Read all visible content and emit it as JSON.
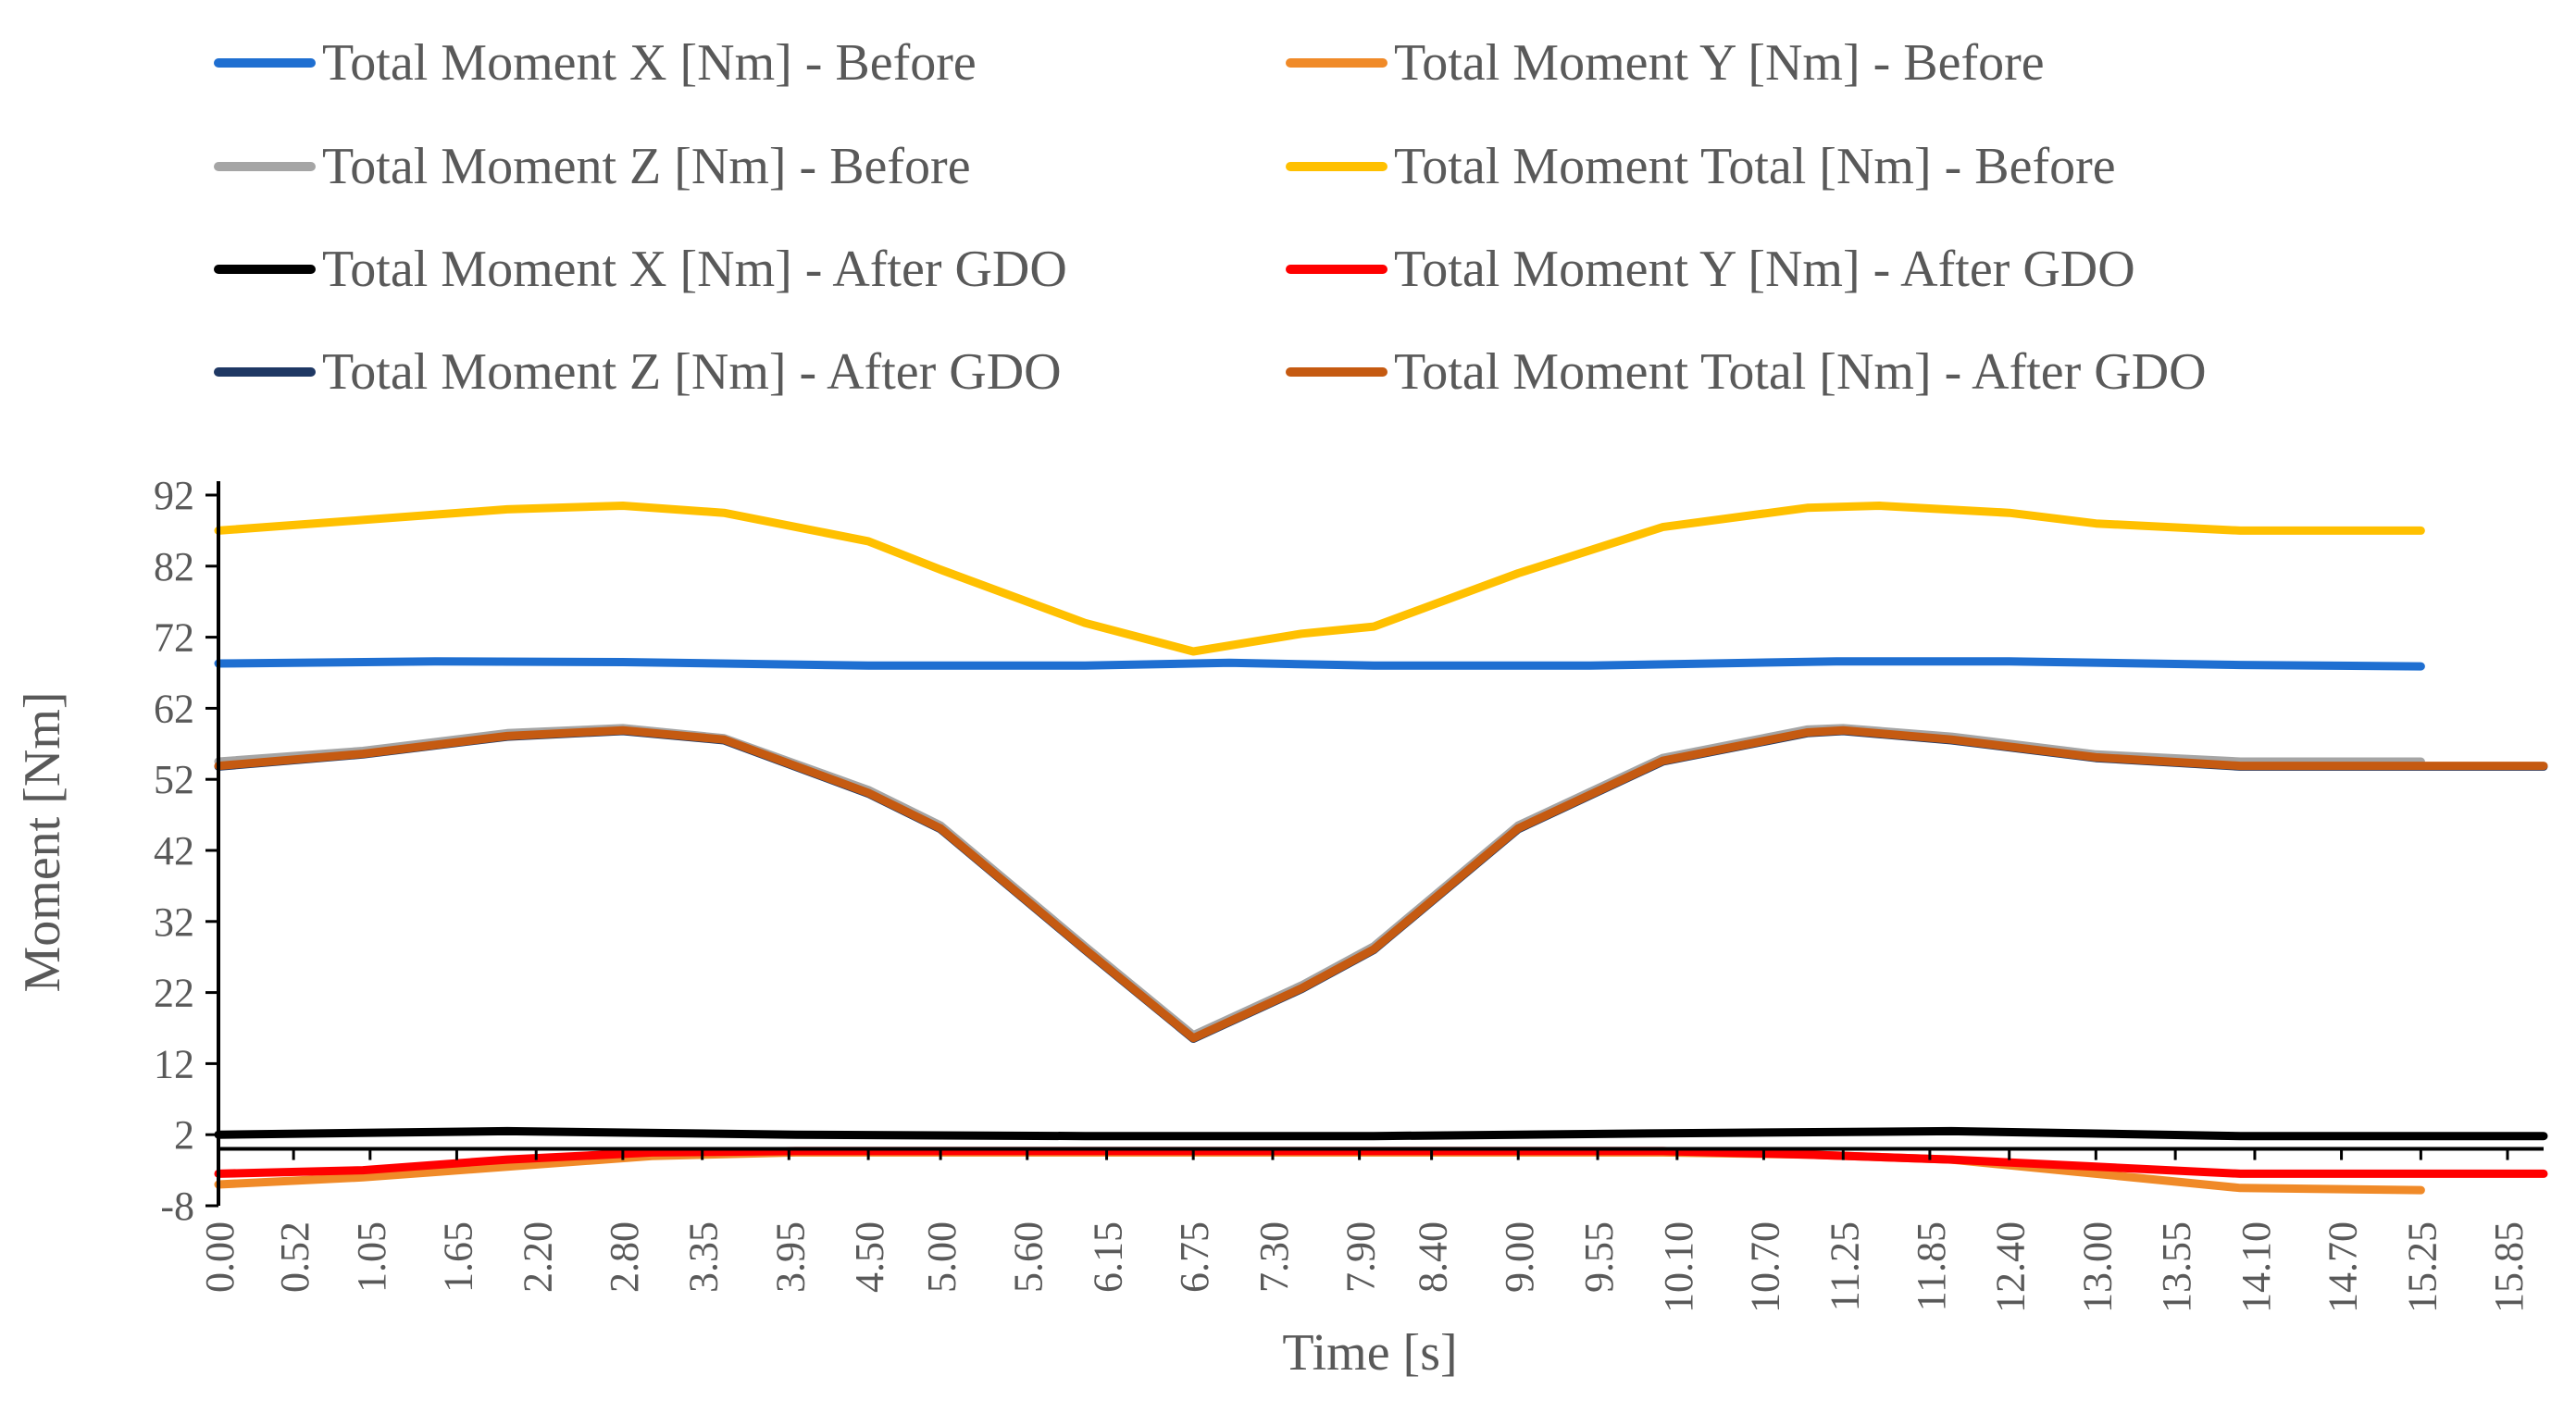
{
  "chart_data": {
    "type": "line",
    "xlabel": "Time [s]",
    "ylabel": "Moment [Nm]",
    "ylim": [
      -8,
      92
    ],
    "yticks": [
      92,
      82,
      72,
      62,
      52,
      42,
      32,
      22,
      12,
      2,
      -8
    ],
    "xlim": [
      0,
      16.1
    ],
    "xticks": [
      "0.00",
      "0.52",
      "1.05",
      "1.65",
      "2.20",
      "2.80",
      "3.35",
      "3.95",
      "4.50",
      "5.00",
      "5.60",
      "6.15",
      "6.75",
      "7.30",
      "7.90",
      "8.40",
      "9.00",
      "9.55",
      "10.10",
      "10.70",
      "11.25",
      "11.85",
      "12.40",
      "13.00",
      "13.55",
      "14.10",
      "14.70",
      "15.25",
      "15.85"
    ],
    "grid": false,
    "legend_position": "top",
    "series": [
      {
        "name": "Total Moment X [Nm] - Before",
        "color": "#1f6fd1",
        "x": [
          0,
          1.5,
          2.8,
          4.5,
          6.0,
          7.0,
          8.0,
          9.5,
          11.2,
          12.4,
          14.0,
          15.25
        ],
        "y": [
          68.3,
          68.6,
          68.5,
          68.0,
          68.0,
          68.4,
          68.0,
          68.0,
          68.6,
          68.6,
          68.1,
          67.9
        ]
      },
      {
        "name": "Total Moment Y [Nm] - Before",
        "color": "#f08a28",
        "x": [
          0,
          1,
          2,
          3,
          4,
          5,
          6,
          7,
          8,
          9,
          10,
          11,
          12,
          13,
          14,
          15.25
        ],
        "y": [
          -5.0,
          -4.0,
          -2.5,
          -1.0,
          -0.5,
          -0.5,
          -0.5,
          -0.5,
          -0.5,
          -0.5,
          -0.5,
          -0.8,
          -1.5,
          -3.5,
          -5.5,
          -5.8
        ]
      },
      {
        "name": "Total Moment Z [Nm] - Before",
        "color": "#a5a5a5",
        "x": [
          0,
          1,
          2,
          2.8,
          3.5,
          4.5,
          5.0,
          6.0,
          6.75,
          7.5,
          8.0,
          9.0,
          10.0,
          11.0,
          11.25,
          12.0,
          13.0,
          14.0,
          15.25
        ],
        "y": [
          54.5,
          56.0,
          58.5,
          59.2,
          57.8,
          50.5,
          45.5,
          28.5,
          16.0,
          23.0,
          28.5,
          45.5,
          55.0,
          59.0,
          59.2,
          58.0,
          55.5,
          54.5,
          54.5
        ]
      },
      {
        "name": "Total Moment Total [Nm] - Before",
        "color": "#ffc000",
        "x": [
          0,
          1,
          2,
          2.8,
          3.5,
          4.5,
          5.0,
          6.0,
          6.75,
          7.5,
          8.0,
          9.0,
          10.0,
          11.0,
          11.5,
          12.4,
          13.0,
          14.0,
          15.25
        ],
        "y": [
          87.0,
          88.5,
          90.0,
          90.5,
          89.5,
          85.5,
          81.5,
          74.0,
          70.0,
          72.5,
          73.5,
          81.0,
          87.5,
          90.2,
          90.5,
          89.5,
          88.0,
          87.0,
          87.0
        ]
      },
      {
        "name": "Total Moment X [Nm] - After GDO",
        "color": "#000000",
        "x": [
          0,
          2.0,
          4.0,
          6.0,
          8.0,
          10.0,
          12.0,
          14.0,
          16.1
        ],
        "y": [
          2.0,
          2.5,
          2.0,
          1.8,
          1.8,
          2.2,
          2.5,
          1.8,
          1.8
        ]
      },
      {
        "name": "Total Moment Y [Nm] - After GDO",
        "color": "#ff0000",
        "x": [
          0,
          1,
          2,
          3,
          4,
          6,
          8,
          10,
          11,
          12,
          13,
          14,
          15,
          16.1
        ],
        "y": [
          -3.5,
          -3.0,
          -1.5,
          -0.5,
          -0.3,
          -0.3,
          -0.3,
          -0.3,
          -0.8,
          -1.5,
          -2.5,
          -3.5,
          -3.5,
          -3.5
        ]
      },
      {
        "name": "Total Moment Z [Nm] - After GDO",
        "color": "#1f3864",
        "x": [
          0,
          1,
          2,
          2.8,
          3.5,
          4.5,
          5.0,
          6.0,
          6.75,
          7.5,
          8.0,
          9.0,
          10.0,
          11.0,
          11.25,
          12.0,
          13.0,
          14.0,
          16.1
        ],
        "y": [
          53.8,
          55.5,
          58.0,
          58.8,
          57.5,
          50.0,
          45.0,
          28.0,
          15.5,
          22.5,
          28.0,
          45.0,
          54.5,
          58.5,
          58.8,
          57.5,
          55.0,
          53.8,
          53.8
        ]
      },
      {
        "name": "Total Moment Total [Nm] - After GDO",
        "color": "#c55a11",
        "x": [
          0,
          1,
          2,
          2.8,
          3.5,
          4.5,
          5.0,
          6.0,
          6.75,
          7.5,
          8.0,
          9.0,
          10.0,
          11.0,
          11.25,
          12.0,
          13.0,
          14.0,
          16.1
        ],
        "y": [
          53.9,
          55.6,
          58.1,
          58.9,
          57.6,
          50.1,
          45.1,
          28.1,
          15.6,
          22.6,
          28.1,
          45.1,
          54.6,
          58.6,
          58.9,
          57.6,
          55.1,
          53.9,
          53.9
        ]
      }
    ]
  }
}
